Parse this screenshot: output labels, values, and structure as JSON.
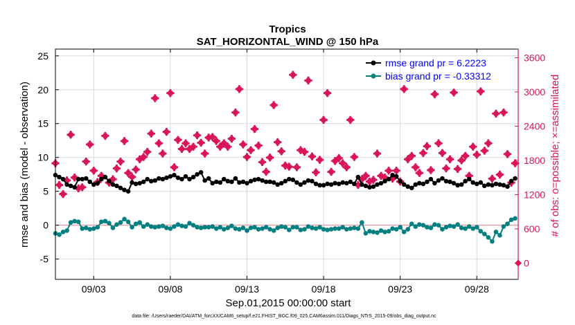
{
  "chart_data": {
    "type": "line",
    "title": "Tropics",
    "subtitle": "SAT_HORIZONTAL_WIND @ 150 hPa",
    "xlabel": "Sep.01,2015 00:00:00 start",
    "ylabel": "rmse and bias (model - observation)",
    "y2label": "# of obs: o=possible; ×=assimilated",
    "footnote": "data file: /Users/raeder/DAI/ATM_forcXX/CAM6_setup/f.e21.FHIST_BGC.f09_025.CAM6assim.011/Diags_NTrS_2015-09/obs_diag_output.nc",
    "xlim": [
      0.5,
      30.7
    ],
    "ylim": [
      -8,
      26
    ],
    "y2lim": [
      -285,
      3751
    ],
    "x_ticks": [
      3,
      8,
      13,
      18,
      23,
      28
    ],
    "x_tick_labels": [
      "09/03",
      "09/08",
      "09/13",
      "09/18",
      "09/23",
      "09/28"
    ],
    "y_ticks": [
      -5,
      0,
      5,
      10,
      15,
      20,
      25
    ],
    "y_tick_labels": [
      "-5",
      "0",
      "5",
      "10",
      "15",
      "20",
      "25"
    ],
    "y2_ticks": [
      0,
      600,
      1200,
      1800,
      2400,
      3000,
      3600
    ],
    "y2_tick_labels": [
      "0",
      "600",
      "1200",
      "1800",
      "2400",
      "3000",
      "3600"
    ],
    "colors": {
      "rmse": "#000000",
      "bias": "#008080",
      "obs": "#d9145a",
      "zero_line": "#e8a0a8",
      "axis": "#000000",
      "grid": "#d9d9d9"
    },
    "legend": {
      "placement": "top-right",
      "rmse_label": "rmse grand pr = 6.2223",
      "bias_label": "bias grand pr = -0.33312",
      "text_color": "#0000ff"
    },
    "series": [
      {
        "name": "rmse",
        "x": [
          0.5,
          0.75,
          1.0,
          1.25,
          1.5,
          1.75,
          2.0,
          2.25,
          2.5,
          2.75,
          3.0,
          3.25,
          3.5,
          3.75,
          4.0,
          4.25,
          4.5,
          4.75,
          5.0,
          5.25,
          5.5,
          5.75,
          6.0,
          6.25,
          6.5,
          6.75,
          7.0,
          7.25,
          7.5,
          7.75,
          8.0,
          8.25,
          8.5,
          8.75,
          9.0,
          9.25,
          9.5,
          9.75,
          10.0,
          10.25,
          10.5,
          10.75,
          11.0,
          11.25,
          11.5,
          11.75,
          12.0,
          12.25,
          12.5,
          12.75,
          13.0,
          13.25,
          13.5,
          13.75,
          14.0,
          14.25,
          14.5,
          14.75,
          15.0,
          15.25,
          15.5,
          15.75,
          16.0,
          16.25,
          16.5,
          16.75,
          17.0,
          17.25,
          17.5,
          17.75,
          18.0,
          18.25,
          18.5,
          18.75,
          19.0,
          19.25,
          19.5,
          19.75,
          20.0,
          20.25,
          20.5,
          20.75,
          21.0,
          21.25,
          21.5,
          21.75,
          22.0,
          22.25,
          22.5,
          22.75,
          23.0,
          23.25,
          23.5,
          23.75,
          24.0,
          24.25,
          24.5,
          24.75,
          25.0,
          25.25,
          25.5,
          25.75,
          26.0,
          26.25,
          26.5,
          26.75,
          27.0,
          27.25,
          27.5,
          27.75,
          28.0,
          28.25,
          28.5,
          28.75,
          29.0,
          29.25,
          29.5,
          29.75,
          30.0,
          30.25,
          30.5
        ],
        "values": [
          7.4,
          7.1,
          6.8,
          6.0,
          5.8,
          5.6,
          6.8,
          6.8,
          6.9,
          6.4,
          6.0,
          6.2,
          6.8,
          7.1,
          6.5,
          6.0,
          5.8,
          5.5,
          5.2,
          5.0,
          6.3,
          6.1,
          6.2,
          6.4,
          6.8,
          6.5,
          6.6,
          6.9,
          6.8,
          7.0,
          7.2,
          7.4,
          7.0,
          6.8,
          7.2,
          6.8,
          7.1,
          7.5,
          7.8,
          6.6,
          6.9,
          6.2,
          6.4,
          6.3,
          6.8,
          6.5,
          6.4,
          6.9,
          6.3,
          6.4,
          6.2,
          6.5,
          6.7,
          6.8,
          6.6,
          6.4,
          6.4,
          6.3,
          6.0,
          6.2,
          6.5,
          6.8,
          6.7,
          6.3,
          6.0,
          6.3,
          6.6,
          6.5,
          6.1,
          5.9,
          5.9,
          6.1,
          6.0,
          6.2,
          6.1,
          6.3,
          6.2,
          6.4,
          6.1,
          7.1,
          6.0,
          5.8,
          5.6,
          5.7,
          6.0,
          6.2,
          6.5,
          6.8,
          7.4,
          7.2,
          6.5,
          6.0,
          5.7,
          5.5,
          6.0,
          6.2,
          6.1,
          6.4,
          6.8,
          6.2,
          6.6,
          6.9,
          6.5,
          6.4,
          6.2,
          5.9,
          6.0,
          6.5,
          6.8,
          6.3,
          6.1,
          6.3,
          5.8,
          6.0,
          5.9,
          6.1,
          6.0,
          5.9,
          5.7,
          6.5,
          6.9
        ]
      },
      {
        "name": "bias",
        "x": [
          0.5,
          0.75,
          1.0,
          1.25,
          1.5,
          1.75,
          2.0,
          2.25,
          2.5,
          2.75,
          3.0,
          3.25,
          3.5,
          3.75,
          4.0,
          4.25,
          4.5,
          4.75,
          5.0,
          5.25,
          5.5,
          5.75,
          6.0,
          6.25,
          6.5,
          6.75,
          7.0,
          7.25,
          7.5,
          7.75,
          8.0,
          8.25,
          8.5,
          8.75,
          9.0,
          9.25,
          9.5,
          9.75,
          10.0,
          10.25,
          10.5,
          10.75,
          11.0,
          11.25,
          11.5,
          11.75,
          12.0,
          12.25,
          12.5,
          12.75,
          13.0,
          13.25,
          13.5,
          13.75,
          14.0,
          14.25,
          14.5,
          14.75,
          15.0,
          15.25,
          15.5,
          15.75,
          16.0,
          16.25,
          16.5,
          16.75,
          17.0,
          17.25,
          17.5,
          17.75,
          18.0,
          18.25,
          18.5,
          18.75,
          19.0,
          19.25,
          19.5,
          19.75,
          20.0,
          20.25,
          20.5,
          20.75,
          21.0,
          21.25,
          21.5,
          21.75,
          22.0,
          22.25,
          22.5,
          22.75,
          23.0,
          23.25,
          23.5,
          23.75,
          24.0,
          24.25,
          24.5,
          24.75,
          25.0,
          25.25,
          25.5,
          25.75,
          26.0,
          26.25,
          26.5,
          26.75,
          27.0,
          27.25,
          27.5,
          27.75,
          28.0,
          28.25,
          28.5,
          28.75,
          29.0,
          29.25,
          29.5,
          29.75,
          30.0,
          30.25,
          30.5
        ],
        "values": [
          -1.2,
          -1.4,
          -1.0,
          -0.8,
          0.4,
          0.6,
          0.5,
          -0.5,
          -0.4,
          -0.6,
          -0.5,
          -0.3,
          0.5,
          0.6,
          0.3,
          -0.4,
          0.1,
          0.4,
          0.9,
          0.5,
          -0.3,
          0.2,
          0.4,
          -0.2,
          0.1,
          -0.2,
          -0.3,
          -0.2,
          -0.1,
          -0.4,
          -0.5,
          -0.2,
          0.1,
          -0.1,
          -0.2,
          0.3,
          0.0,
          -0.3,
          -0.4,
          -0.3,
          -0.3,
          -0.2,
          -0.5,
          -0.3,
          -0.6,
          -0.4,
          -0.1,
          -0.5,
          -0.6,
          -0.4,
          -0.8,
          -0.4,
          -0.3,
          -0.6,
          -0.5,
          -0.3,
          -0.6,
          -0.8,
          -0.4,
          -0.2,
          -0.3,
          -0.7,
          -0.3,
          -0.3,
          -0.7,
          -0.6,
          -0.2,
          -0.4,
          -0.5,
          -0.3,
          -0.6,
          -0.7,
          -0.6,
          -0.5,
          -0.5,
          -0.3,
          -0.6,
          -0.5,
          -0.4,
          -0.5,
          0.4,
          -1.2,
          -0.9,
          -1.0,
          -1.1,
          -0.8,
          -1.0,
          -0.9,
          -0.5,
          -0.6,
          -0.3,
          -1.0,
          -0.6,
          0.2,
          -0.2,
          0.1,
          0.0,
          -0.3,
          -0.4,
          0.1,
          0.0,
          -0.6,
          -0.3,
          -0.1,
          -0.2,
          0.1,
          -0.4,
          -0.5,
          -0.2,
          -0.5,
          -0.3,
          -0.9,
          -1.3,
          -1.8,
          -2.4,
          -1.0,
          -1.5,
          -0.2,
          0.2,
          0.8,
          1.0
        ]
      },
      {
        "name": "obs_assimilated",
        "x": [
          0.5,
          0.75,
          1.0,
          1.25,
          1.5,
          1.75,
          2.0,
          2.25,
          2.5,
          2.75,
          3.0,
          3.25,
          3.5,
          3.75,
          4.0,
          4.25,
          4.5,
          4.75,
          5.0,
          5.25,
          5.5,
          5.75,
          6.0,
          6.25,
          6.5,
          6.75,
          7.0,
          7.25,
          7.5,
          7.75,
          8.0,
          8.25,
          8.5,
          8.75,
          9.0,
          9.25,
          9.5,
          9.75,
          10.0,
          10.25,
          10.5,
          10.75,
          11.0,
          11.25,
          11.5,
          11.75,
          12.0,
          12.25,
          12.5,
          12.75,
          13.0,
          13.25,
          13.5,
          13.75,
          14.0,
          14.25,
          14.5,
          14.75,
          15.0,
          15.25,
          15.5,
          15.75,
          16.0,
          16.25,
          16.5,
          16.75,
          17.0,
          17.25,
          17.5,
          17.75,
          18.0,
          18.25,
          18.5,
          18.75,
          19.0,
          19.25,
          19.5,
          19.75,
          20.0,
          20.25,
          20.5,
          20.75,
          21.0,
          21.25,
          21.5,
          21.75,
          22.0,
          22.25,
          22.5,
          22.75,
          23.0,
          23.25,
          23.5,
          23.75,
          24.0,
          24.25,
          24.5,
          24.75,
          25.0,
          25.25,
          25.5,
          25.75,
          26.0,
          26.25,
          26.5,
          26.75,
          27.0,
          27.25,
          27.5,
          27.75,
          28.0,
          28.25,
          28.5,
          28.75,
          29.0,
          29.25,
          29.5,
          29.75,
          30.0,
          30.25,
          30.5
        ],
        "values": [
          1750,
          1370,
          1210,
          1450,
          2250,
          1500,
          1310,
          1330,
          1780,
          2080,
          1620,
          1420,
          1530,
          2230,
          1410,
          1470,
          1660,
          1780,
          2140,
          1580,
          1510,
          1640,
          1820,
          1860,
          1950,
          2270,
          2890,
          2100,
          1920,
          2300,
          2980,
          1680,
          2160,
          2000,
          2100,
          2000,
          2040,
          2240,
          2110,
          1920,
          2200,
          2210,
          2140,
          2040,
          2100,
          2040,
          2180,
          2640,
          3050,
          2080,
          1860,
          1980,
          2350,
          2060,
          1770,
          1600,
          1850,
          2770,
          2120,
          1960,
          1710,
          1690,
          3300,
          1680,
          1980,
          1950,
          3200,
          1870,
          1590,
          1810,
          2510,
          2980,
          1600,
          1790,
          1840,
          1750,
          1680,
          2510,
          1860,
          1370,
          1470,
          1530,
          1430,
          1460,
          1920,
          1530,
          1500,
          1620,
          1480,
          1620,
          1430,
          3050,
          1820,
          1880,
          1680,
          1580,
          1930,
          2050,
          1630,
          2960,
          2100,
          1930,
          1660,
          1820,
          2990,
          1650,
          1800,
          1880,
          1530,
          2040,
          1900,
          3010,
          1970,
          2100,
          1480,
          2620,
          1550,
          2640,
          1910,
          1410,
          1750
        ]
      },
      {
        "name": "obs_possible",
        "x": [
          30.7
        ],
        "values": [
          0
        ]
      }
    ]
  }
}
